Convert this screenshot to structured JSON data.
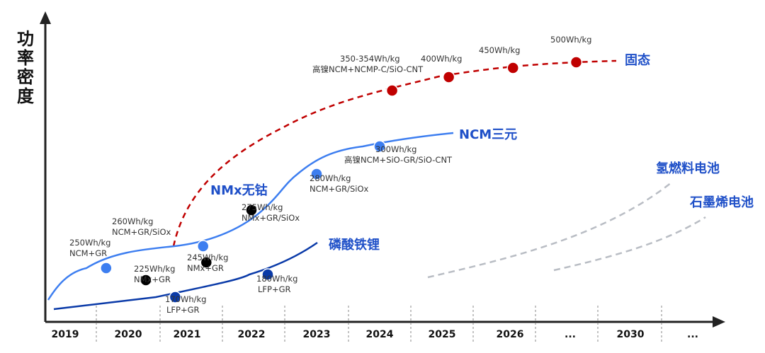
{
  "chart_data": {
    "type": "line",
    "ylabel": "功率密度",
    "categories": [
      "2019",
      "2020",
      "2021",
      "2022",
      "2023",
      "2024",
      "2025",
      "2026",
      "...",
      "2030",
      "..."
    ],
    "series": [
      {
        "name": "固态",
        "color": "#c00000",
        "style": "dashed",
        "points": [
          {
            "x": 2.3,
            "value": "",
            "tech": ""
          },
          {
            "x": 5.2,
            "value": "350-354Wh/kg",
            "tech": "高镍NCM+NCMP-C/SiO-CNT",
            "marker": true
          },
          {
            "x": 6.1,
            "value": "400Wh/kg",
            "tech": "",
            "marker": true
          },
          {
            "x": 7.05,
            "value": "450Wh/kg",
            "tech": "",
            "marker": true
          },
          {
            "x": 8.1,
            "value": "500Wh/kg",
            "tech": "",
            "marker": true
          }
        ]
      },
      {
        "name": "NCM三元",
        "color": "#3d7ef0",
        "style": "solid",
        "points": [
          {
            "x": 0.0,
            "value": "",
            "tech": ""
          },
          {
            "x": 0.65,
            "value": "250Wh/kg",
            "tech": "NCM+GR",
            "marker": true
          },
          {
            "x": 2.25,
            "value": "260Wh/kg",
            "tech": "NCM+GR/SiOx",
            "marker": true
          },
          {
            "x": 4.0,
            "value": "280Wh/kg",
            "tech": "NCM+GR/SiOx",
            "marker": true
          },
          {
            "x": 5.0,
            "value": "300Wh/kg",
            "tech": "高镍NCM+SiO-GR/SiO-CNT",
            "marker": true
          }
        ]
      },
      {
        "name": "NMx无钴",
        "color": "#000000",
        "style": "points",
        "points": [
          {
            "x": 1.3,
            "value": "225Wh/kg",
            "tech": "NMx+GR",
            "marker": true
          },
          {
            "x": 2.3,
            "value": "245Wh/kg",
            "tech": "NMx+GR",
            "marker": true
          },
          {
            "x": 3.0,
            "value": "275Wh/kg",
            "tech": "NMx+GR/SiOx",
            "marker": true
          }
        ]
      },
      {
        "name": "磷酸铁锂",
        "color": "#0a3aa8",
        "style": "solid",
        "points": [
          {
            "x": 0.0,
            "value": "",
            "tech": ""
          },
          {
            "x": 1.8,
            "value": "170Wh/kg",
            "tech": "LFP+GR",
            "marker": true
          },
          {
            "x": 3.25,
            "value": "180Wh/kg",
            "tech": "LFP+GR",
            "marker": true
          }
        ]
      },
      {
        "name": "氢燃料电池",
        "color": "#b9bdc4",
        "style": "dashed-gray",
        "points": []
      },
      {
        "name": "石墨烯电池",
        "color": "#b9bdc4",
        "style": "dashed-gray",
        "points": []
      }
    ]
  }
}
